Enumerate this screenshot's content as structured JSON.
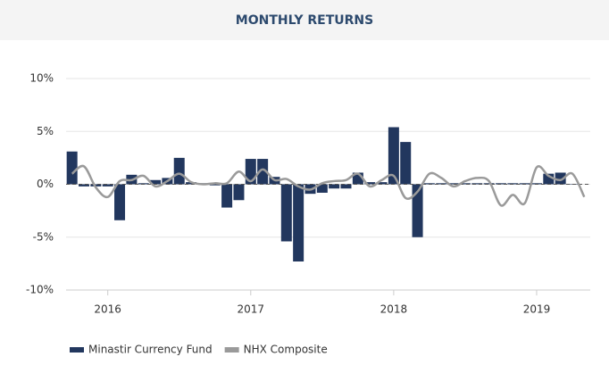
{
  "chart_data": {
    "type": "bar_line",
    "title": "MONTHLY RETURNS",
    "categories": [
      null,
      null,
      null,
      "2016",
      null,
      null,
      null,
      null,
      null,
      null,
      null,
      null,
      null,
      null,
      null,
      "2017",
      null,
      null,
      null,
      null,
      null,
      null,
      null,
      null,
      null,
      null,
      null,
      "2018",
      null,
      null,
      null,
      null,
      null,
      null,
      null,
      null,
      null,
      null,
      null,
      "2019",
      null,
      null,
      null,
      null
    ],
    "series": [
      {
        "name": "Minastir Currency Fund",
        "type": "bar",
        "color": "#22375e",
        "values": [
          3.1,
          -0.2,
          -0.2,
          -0.2,
          -3.4,
          0.9,
          0.1,
          0.4,
          0.6,
          2.5,
          0.2,
          0.1,
          -0.1,
          -2.2,
          -1.5,
          2.4,
          2.4,
          0.7,
          -5.4,
          -7.3,
          -0.9,
          -0.8,
          -0.4,
          -0.4,
          1.1,
          0.2,
          0.2,
          5.4,
          4.0,
          -5.0,
          0.1,
          0.1,
          0.1,
          0.1,
          0.1,
          0.1,
          0.1,
          0.1,
          0.1,
          0.1,
          1.0,
          1.1,
          0,
          null
        ]
      },
      {
        "name": "NHX Composite",
        "type": "line",
        "color": "#9a9a9a",
        "values": [
          1.0,
          1.7,
          -0.3,
          -1.2,
          0.3,
          0.4,
          0.8,
          -0.2,
          0.3,
          1.0,
          0.2,
          0,
          0.1,
          0.1,
          1.2,
          0.3,
          1.4,
          0.4,
          0.5,
          -0.2,
          -0.5,
          0.1,
          0.3,
          0.4,
          1.0,
          -0.2,
          0.4,
          0.8,
          -1.3,
          -0.7,
          1.0,
          0.6,
          -0.2,
          0.3,
          0.6,
          0.3,
          -2.0,
          -1.0,
          -1.8,
          1.6,
          0.8,
          0.4,
          1.0,
          -1.2
        ]
      }
    ],
    "ylim": [
      -10,
      10
    ],
    "yticks": [
      {
        "value": -10,
        "label": "-10%"
      },
      {
        "value": -5,
        "label": "-5%"
      },
      {
        "value": 0,
        "label": "0%"
      },
      {
        "value": 5,
        "label": "5%"
      },
      {
        "value": 10,
        "label": "10%"
      }
    ],
    "grid": true,
    "legend": "bottom-left"
  }
}
